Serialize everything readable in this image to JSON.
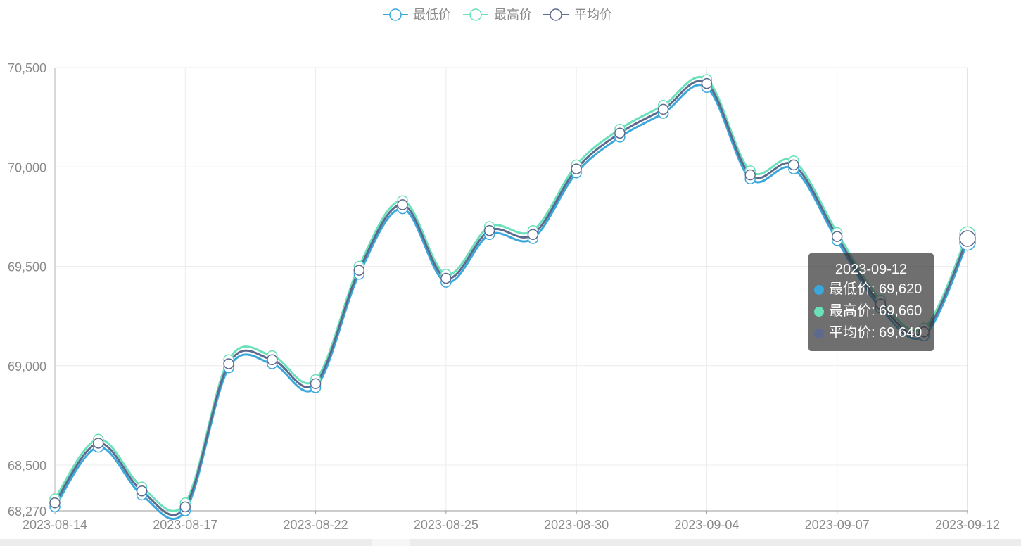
{
  "chart_data": {
    "type": "line",
    "categories": [
      "2023-08-14",
      "2023-08-15",
      "2023-08-16",
      "2023-08-17",
      "2023-08-18",
      "2023-08-21",
      "2023-08-22",
      "2023-08-23",
      "2023-08-24",
      "2023-08-25",
      "2023-08-28",
      "2023-08-29",
      "2023-08-30",
      "2023-08-31",
      "2023-09-01",
      "2023-09-04",
      "2023-09-05",
      "2023-09-06",
      "2023-09-07",
      "2023-09-08",
      "2023-09-11",
      "2023-09-12"
    ],
    "x_tick_labels": [
      "2023-08-14",
      "2023-08-17",
      "2023-08-22",
      "2023-08-25",
      "2023-08-30",
      "2023-09-04",
      "2023-09-07",
      "2023-09-12"
    ],
    "series": [
      {
        "name": "最低价",
        "color": "#3ba8dc",
        "values": [
          68290,
          68590,
          68350,
          68270,
          68990,
          69010,
          68890,
          69460,
          69790,
          69420,
          69660,
          69640,
          69970,
          70150,
          70270,
          70400,
          69940,
          69990,
          69630,
          69290,
          69150,
          69620
        ]
      },
      {
        "name": "最高价",
        "color": "#6ae0bb",
        "values": [
          68330,
          68630,
          68390,
          68310,
          69030,
          69050,
          68930,
          69500,
          69830,
          69460,
          69700,
          69680,
          70010,
          70190,
          70310,
          70440,
          69980,
          70030,
          69670,
          69330,
          69190,
          69660
        ]
      },
      {
        "name": "平均价",
        "color": "#5d6a8e",
        "values": [
          68310,
          68610,
          68370,
          68290,
          69010,
          69030,
          68910,
          69480,
          69810,
          69440,
          69680,
          69660,
          69990,
          70170,
          70290,
          70420,
          69960,
          70010,
          69650,
          69310,
          69170,
          69640
        ]
      }
    ],
    "y_ticks": [
      "70,500",
      "70,000",
      "69,500",
      "69,000",
      "68,500",
      "68,270"
    ],
    "y_tick_values": [
      70500,
      70000,
      69500,
      69000,
      68500,
      68270
    ],
    "ylim": [
      68270,
      70500
    ],
    "grid": true,
    "legend_position": "top-center",
    "title": "",
    "xlabel": "",
    "ylabel": ""
  },
  "tooltip": {
    "date": "2023-09-12",
    "rows": [
      {
        "label": "最低价: 69,620",
        "color": "#3ba8dc"
      },
      {
        "label": "最高价: 69,660",
        "color": "#6ae0bb"
      },
      {
        "label": "平均价: 69,640",
        "color": "#5d6a8e"
      }
    ]
  }
}
